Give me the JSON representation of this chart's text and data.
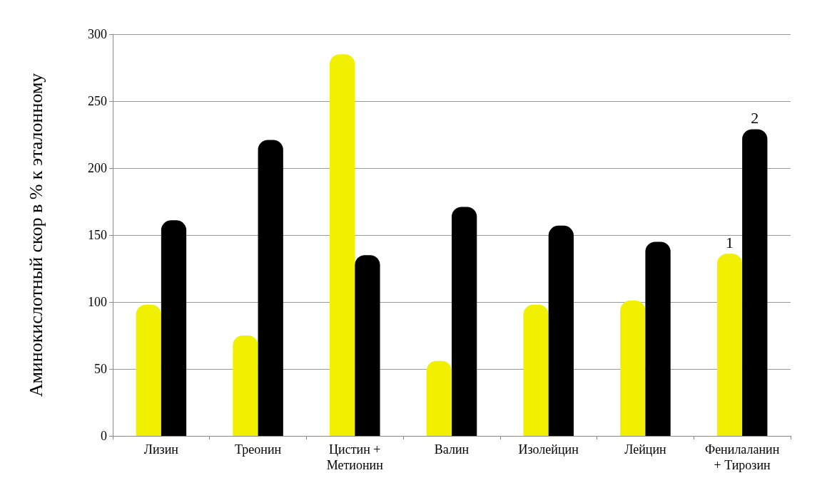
{
  "chart_data": {
    "type": "bar",
    "ylabel": "Аминокислотный скор в % к эталонному",
    "categories": [
      "Лизин",
      "Треонин",
      "Цистин +\nМетионин",
      "Валин",
      "Изолейцин",
      "Лейцин",
      "Фенилаланин\n+ Тирозин"
    ],
    "series": [
      {
        "name": "1",
        "color": "#f0f000",
        "values": [
          98,
          75,
          285,
          56,
          98,
          101,
          136
        ]
      },
      {
        "name": "2",
        "color": "#000000",
        "values": [
          161,
          221,
          135,
          171,
          157,
          145,
          229
        ]
      }
    ],
    "ylim": [
      0,
      300
    ],
    "yticks": [
      0,
      50,
      100,
      150,
      200,
      250,
      300
    ],
    "grid": "y",
    "legend": false
  }
}
